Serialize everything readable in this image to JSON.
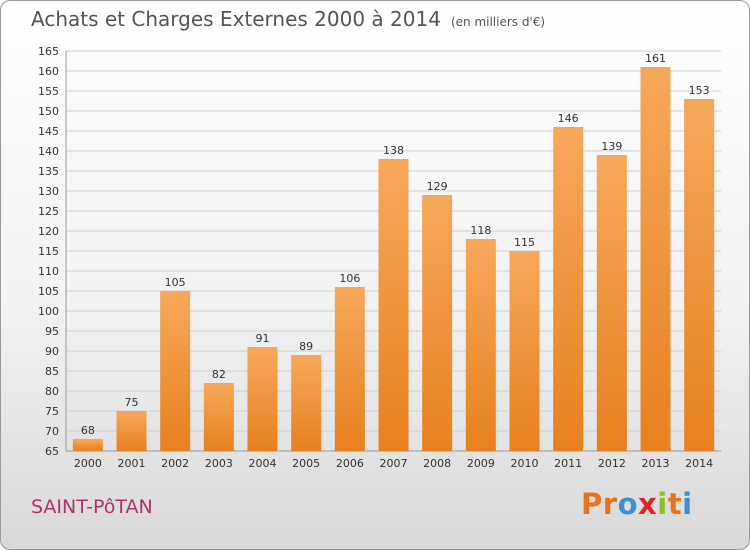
{
  "title": "Achats et Charges Externes 2000 à 2014",
  "subtitle": "(en milliers d'€)",
  "commune": "SAINT-PôTAN",
  "logo": {
    "text": "Proxiti",
    "colors": [
      "#e8731c",
      "#e8731c",
      "#3b8fd4",
      "#d9262c",
      "#8bbf2a",
      "#e8731c",
      "#3b8fd4"
    ]
  },
  "colors": {
    "bar": "#e8801f",
    "bar_light": "#f6a85a",
    "grid": "#d0d0d0",
    "axis_text": "#333333"
  },
  "chart_data": {
    "type": "bar",
    "title": "Achats et Charges Externes 2000 à 2014",
    "categories": [
      "2000",
      "2001",
      "2002",
      "2003",
      "2004",
      "2005",
      "2006",
      "2007",
      "2008",
      "2009",
      "2010",
      "2011",
      "2012",
      "2013",
      "2014"
    ],
    "values": [
      68,
      75,
      105,
      82,
      91,
      89,
      106,
      138,
      129,
      118,
      115,
      146,
      139,
      161,
      153
    ],
    "ylim": [
      65,
      165
    ],
    "yticks": [
      65,
      70,
      75,
      80,
      85,
      90,
      95,
      100,
      105,
      110,
      115,
      120,
      125,
      130,
      135,
      140,
      145,
      150,
      155,
      160,
      165
    ],
    "grid": true
  }
}
